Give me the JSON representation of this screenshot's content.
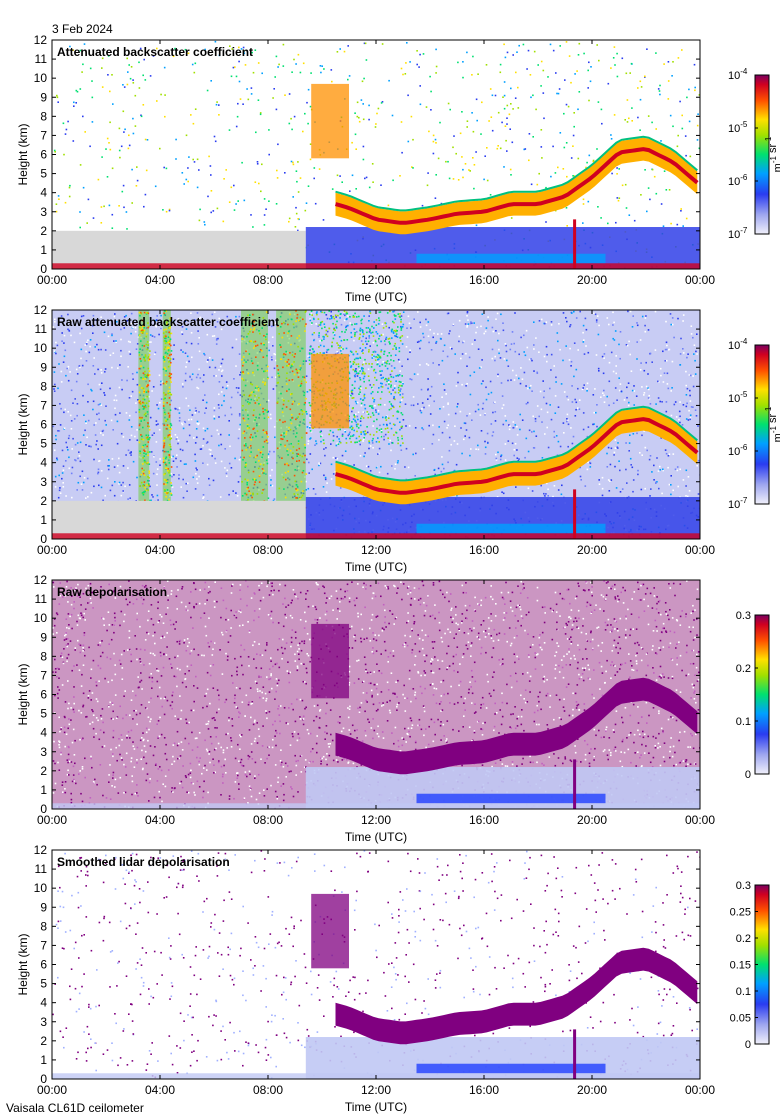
{
  "date": "3 Feb 2024",
  "footer": "Vaisala CL61D ceilometer",
  "x_tick_labels": [
    "00:00",
    "04:00",
    "08:00",
    "12:00",
    "16:00",
    "20:00",
    "00:00"
  ],
  "y_tick_labels": [
    "0",
    "1",
    "2",
    "3",
    "4",
    "5",
    "6",
    "7",
    "8",
    "9",
    "10",
    "11",
    "12"
  ],
  "chart_data": [
    {
      "type": "heatmap",
      "title": "Attenuated backscatter coefficient",
      "xlabel": "Time (UTC)",
      "ylabel": "Height (km)",
      "xlim": [
        "00:00",
        "24:00"
      ],
      "ylim": [
        0,
        12
      ],
      "colorbar": {
        "scale": "log",
        "ticks": [
          "10^-4",
          "10^-5",
          "10^-6",
          "10^-7"
        ],
        "unit": "m^-1 sr^-1"
      },
      "features": {
        "cloud_layer_top_km": [
          [
            10.5,
            3.6
          ],
          [
            11,
            3.4
          ],
          [
            12,
            2.8
          ],
          [
            13,
            2.6
          ],
          [
            14,
            2.8
          ],
          [
            15,
            3.1
          ],
          [
            16,
            3.2
          ],
          [
            17,
            3.6
          ],
          [
            18,
            3.6
          ],
          [
            19,
            4.0
          ],
          [
            20,
            5.0
          ],
          [
            21,
            6.3
          ],
          [
            22,
            6.5
          ],
          [
            23,
            5.8
          ],
          [
            24,
            4.6
          ]
        ],
        "high_cloud": {
          "time_h": [
            9.6,
            11.0
          ],
          "height_km": [
            5.8,
            9.7
          ]
        }
      }
    },
    {
      "type": "heatmap",
      "title": "Raw attenuated backscatter coefficient",
      "xlabel": "Time (UTC)",
      "ylabel": "Height (km)",
      "xlim": [
        "00:00",
        "24:00"
      ],
      "ylim": [
        0,
        12
      ],
      "colorbar": {
        "scale": "log",
        "ticks": [
          "10^-4",
          "10^-5",
          "10^-6",
          "10^-7"
        ],
        "unit": "m^-1 sr^-1"
      }
    },
    {
      "type": "heatmap",
      "title": "Raw depolarisation",
      "xlabel": "Time (UTC)",
      "ylabel": "Height (km)",
      "xlim": [
        "00:00",
        "24:00"
      ],
      "ylim": [
        0,
        12
      ],
      "colorbar": {
        "scale": "linear",
        "ticks": [
          "0.3",
          "0.2",
          "0.1",
          "0"
        ]
      }
    },
    {
      "type": "heatmap",
      "title": "Smoothed lidar depolarisation",
      "xlabel": "Time (UTC)",
      "ylabel": "Height (km)",
      "xlim": [
        "00:00",
        "24:00"
      ],
      "ylim": [
        0,
        12
      ],
      "colorbar": {
        "scale": "linear",
        "ticks": [
          "0.3",
          "0.25",
          "0.2",
          "0.15",
          "0.1",
          "0.05",
          "0"
        ]
      }
    }
  ]
}
